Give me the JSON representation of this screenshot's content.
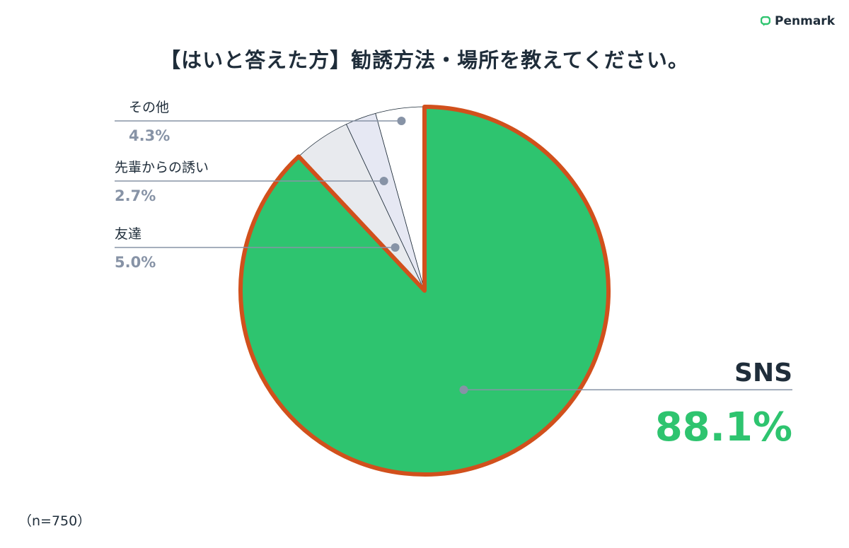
{
  "brand": {
    "name": "Penmark",
    "color": "#2ec46f",
    "icon": "speech-bubble-icon"
  },
  "chart_data": {
    "type": "pie",
    "title": "【はいと答えた方】勧誘方法・場所を教えてください。",
    "note": "（n=750）",
    "start_angle_deg": 0,
    "direction": "clockwise",
    "highlight": {
      "category": "SNS",
      "outline_color": "#d1501c"
    },
    "slices": [
      {
        "label": "SNS",
        "value": 88.1,
        "value_label": "88.1%",
        "color": "#2ec46f"
      },
      {
        "label": "友達",
        "value": 5.0,
        "value_label": "5.0%",
        "color": "#e8eaee"
      },
      {
        "label": "先輩からの誘い",
        "value": 2.7,
        "value_label": "2.7%",
        "color": "#e6e8f3"
      },
      {
        "label": "その他",
        "value": 4.3,
        "value_label": "4.3%",
        "color": "#ffffff"
      }
    ],
    "colors": {
      "leader_line": "#8793a6",
      "small_label_pct": "#8793a6",
      "sns_pct": "#2ec46f",
      "slice_border": "#1f2d3a"
    }
  }
}
